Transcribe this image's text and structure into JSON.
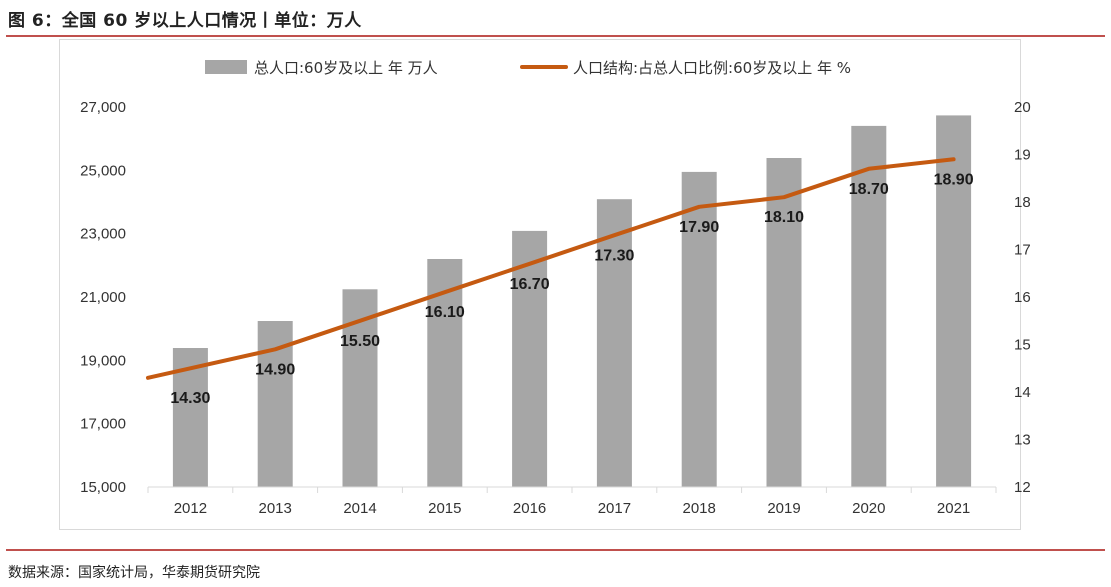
{
  "figure": {
    "title": "图 6：全国 60 岁以上人口情况丨单位：万人",
    "source": "数据来源：国家统计局，华泰期货研究院"
  },
  "colors": {
    "bar": "#a6a6a6",
    "line": "#c55a11",
    "accent_rule": "#c0504d",
    "axis": "#d9d9d9"
  },
  "chart_data": {
    "type": "bar+line",
    "categories": [
      "2012",
      "2013",
      "2014",
      "2015",
      "2016",
      "2017",
      "2018",
      "2019",
      "2020",
      "2021"
    ],
    "series": [
      {
        "name": "总人口:60岁及以上 年 万人",
        "type": "bar",
        "axis": "left",
        "values": [
          19390,
          20243,
          21242,
          22200,
          23086,
          24090,
          24949,
          25388,
          26402,
          26736
        ]
      },
      {
        "name": "人口结构:占总人口比例:60岁及以上 年 %",
        "type": "line",
        "axis": "right",
        "values": [
          14.3,
          14.9,
          15.5,
          16.1,
          16.7,
          17.3,
          17.9,
          18.1,
          18.7,
          18.9
        ],
        "labels": [
          "14.30",
          "14.90",
          "15.50",
          "16.10",
          "16.70",
          "17.30",
          "17.90",
          "18.10",
          "18.70",
          "18.90"
        ]
      }
    ],
    "y_left": {
      "min": 15000,
      "max": 27000,
      "ticks": [
        "15,000",
        "17,000",
        "19,000",
        "21,000",
        "23,000",
        "25,000",
        "27,000"
      ],
      "tick_values": [
        15000,
        17000,
        19000,
        21000,
        23000,
        25000,
        27000
      ]
    },
    "y_right": {
      "min": 12,
      "max": 20,
      "ticks": [
        "12",
        "13",
        "14",
        "15",
        "16",
        "17",
        "18",
        "19",
        "20"
      ],
      "tick_values": [
        12,
        13,
        14,
        15,
        16,
        17,
        18,
        19,
        20
      ]
    },
    "grid": false,
    "legend_position": "top"
  }
}
